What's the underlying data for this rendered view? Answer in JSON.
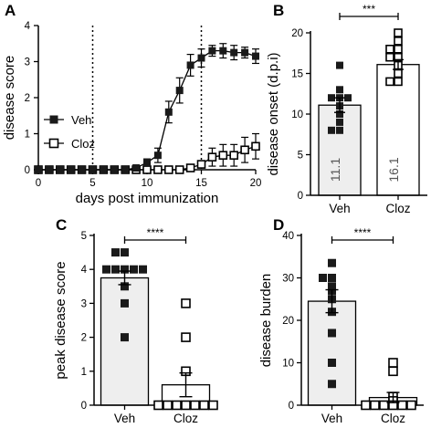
{
  "chart_data": [
    {
      "panel": "A",
      "type": "line",
      "xlabel": "days post immunization",
      "ylabel": "disease score",
      "xlim": [
        0,
        20
      ],
      "ylim": [
        0,
        4
      ],
      "xticks": [
        0,
        5,
        10,
        15,
        20
      ],
      "yticks": [
        0,
        1,
        2,
        3,
        4
      ],
      "vlines": [
        5,
        15
      ],
      "legend": "center-left",
      "series": [
        {
          "name": "Veh",
          "marker": "filled-square",
          "x": [
            0,
            1,
            2,
            3,
            4,
            5,
            6,
            7,
            8,
            9,
            10,
            11,
            12,
            13,
            14,
            15,
            16,
            17,
            18,
            19,
            20
          ],
          "y": [
            0,
            0,
            0,
            0,
            0,
            0,
            0,
            0,
            0,
            0.05,
            0.2,
            0.4,
            1.6,
            2.2,
            2.9,
            3.1,
            3.3,
            3.3,
            3.25,
            3.25,
            3.15
          ],
          "err": [
            0,
            0,
            0,
            0,
            0,
            0,
            0,
            0,
            0,
            0.05,
            0.1,
            0.2,
            0.3,
            0.35,
            0.3,
            0.25,
            0.15,
            0.2,
            0.2,
            0.15,
            0.2
          ]
        },
        {
          "name": "Cloz",
          "marker": "open-square",
          "x": [
            0,
            1,
            2,
            3,
            4,
            5,
            6,
            7,
            8,
            9,
            10,
            11,
            12,
            13,
            14,
            15,
            16,
            17,
            18,
            19,
            20
          ],
          "y": [
            0,
            0,
            0,
            0,
            0,
            0,
            0,
            0,
            0,
            0,
            0,
            0,
            0,
            0,
            0.05,
            0.15,
            0.35,
            0.4,
            0.4,
            0.55,
            0.65
          ],
          "err": [
            0,
            0,
            0,
            0,
            0,
            0,
            0,
            0,
            0,
            0,
            0,
            0,
            0,
            0,
            0.05,
            0.1,
            0.25,
            0.3,
            0.3,
            0.35,
            0.35
          ]
        }
      ]
    },
    {
      "panel": "B",
      "type": "bar",
      "ylabel": "disease onset (d.p.i)",
      "categories": [
        "Veh",
        "Cloz"
      ],
      "ylim": [
        0,
        20
      ],
      "yticks": [
        0,
        5,
        10,
        15,
        20
      ],
      "values": [
        11.1,
        16.1
      ],
      "value_labels": [
        "11.1",
        "16.1"
      ],
      "sem": [
        0.9,
        0.6
      ],
      "points": [
        [
          16,
          13,
          12,
          12,
          11,
          10,
          9,
          8,
          8,
          12
        ],
        [
          20,
          19,
          18,
          18,
          17,
          17,
          16,
          15,
          14,
          14
        ]
      ],
      "significance": "***"
    },
    {
      "panel": "C",
      "type": "bar",
      "ylabel": "peak disease score",
      "categories": [
        "Veh",
        "Cloz"
      ],
      "ylim": [
        0,
        5
      ],
      "yticks": [
        0,
        1,
        2,
        3,
        4,
        5
      ],
      "values": [
        3.75,
        0.6
      ],
      "sem": [
        0.2,
        0.35
      ],
      "points": [
        [
          4.5,
          4.5,
          4,
          4,
          4,
          4,
          4,
          3.5,
          3,
          2
        ],
        [
          3,
          2,
          1,
          0,
          0,
          0,
          0,
          0,
          0,
          0
        ]
      ],
      "significance": "****"
    },
    {
      "panel": "D",
      "type": "bar",
      "ylabel": "disease burden",
      "categories": [
        "Veh",
        "Cloz"
      ],
      "ylim": [
        0,
        40
      ],
      "yticks": [
        0,
        10,
        20,
        30,
        40
      ],
      "values": [
        24.5,
        1.8
      ],
      "sem": [
        2.7,
        1.2
      ],
      "points": [
        [
          33.5,
          30,
          30,
          28,
          27,
          25,
          22,
          17,
          10,
          5
        ],
        [
          10,
          8,
          2,
          1,
          0,
          0,
          0,
          0,
          0,
          0
        ]
      ],
      "significance": "****"
    }
  ],
  "colors": {
    "axis": "#000000",
    "bar_fill_veh": "#eeeeee",
    "bar_fill_cloz": "#ffffff",
    "filled_marker": "#1a1a1a",
    "vline": "#000000"
  }
}
